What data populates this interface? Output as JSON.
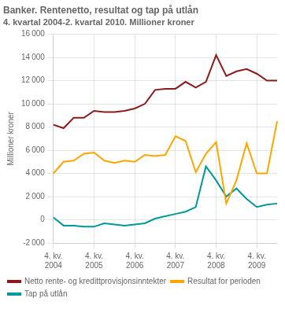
{
  "chart_data": {
    "type": "line",
    "title": "Banker. Rentenetto, resultat og tap på utlån",
    "subtitle": "4. kvartal 2004-2. kvartal 2010. Millioner kroner",
    "y_label": "Millioner kroner",
    "categories": [
      "4. kv.\n2004",
      null,
      null,
      null,
      "4. kv.\n2005",
      null,
      null,
      null,
      "4. kv.\n2006",
      null,
      null,
      null,
      "4. kv.\n2007",
      null,
      null,
      null,
      "4. kv.\n2008",
      null,
      null,
      null,
      "4. kv.\n2009",
      null,
      null
    ],
    "series": [
      {
        "name": "Netto rente- og kredittprovisjonsinntekter",
        "color": "#8B1A1A",
        "values": [
          8200,
          7900,
          8800,
          8800,
          9400,
          9300,
          9300,
          9400,
          9600,
          10000,
          11200,
          11300,
          11300,
          11900,
          11400,
          11900,
          14200,
          12400,
          12800,
          13000,
          12600,
          12000,
          12000
        ]
      },
      {
        "name": "Resultat for perioden",
        "color": "#FFA500",
        "values": [
          4000,
          5000,
          5100,
          5700,
          5800,
          5100,
          4900,
          5100,
          5000,
          5600,
          5500,
          5600,
          7200,
          6800,
          4100,
          5700,
          6700,
          1400,
          3400,
          6600,
          4000,
          4000,
          8500
        ]
      },
      {
        "name": "Tap på utlån",
        "color": "#009999",
        "values": [
          200,
          -500,
          -500,
          -600,
          -600,
          -300,
          -400,
          -500,
          -400,
          -300,
          100,
          300,
          500,
          700,
          1100,
          4600,
          3400,
          2000,
          2700,
          1800,
          1100,
          1300,
          1400
        ]
      }
    ],
    "ylim": [
      -2000,
      16000
    ],
    "yticks": [
      {
        "value": -2000,
        "label": "-2 000"
      },
      0,
      {
        "value": 2000,
        "label": "2 000"
      },
      {
        "value": 4000,
        "label": "4 000"
      },
      {
        "value": 6000,
        "label": "6 000"
      },
      {
        "value": 8000,
        "label": "8 000"
      },
      {
        "value": 10000,
        "label": "10 000"
      },
      {
        "value": 12000,
        "label": "12 000"
      },
      {
        "value": 14000,
        "label": "14 000"
      },
      {
        "value": 16000,
        "label": "16 000"
      }
    ],
    "grid": true,
    "legend": "bottom"
  }
}
